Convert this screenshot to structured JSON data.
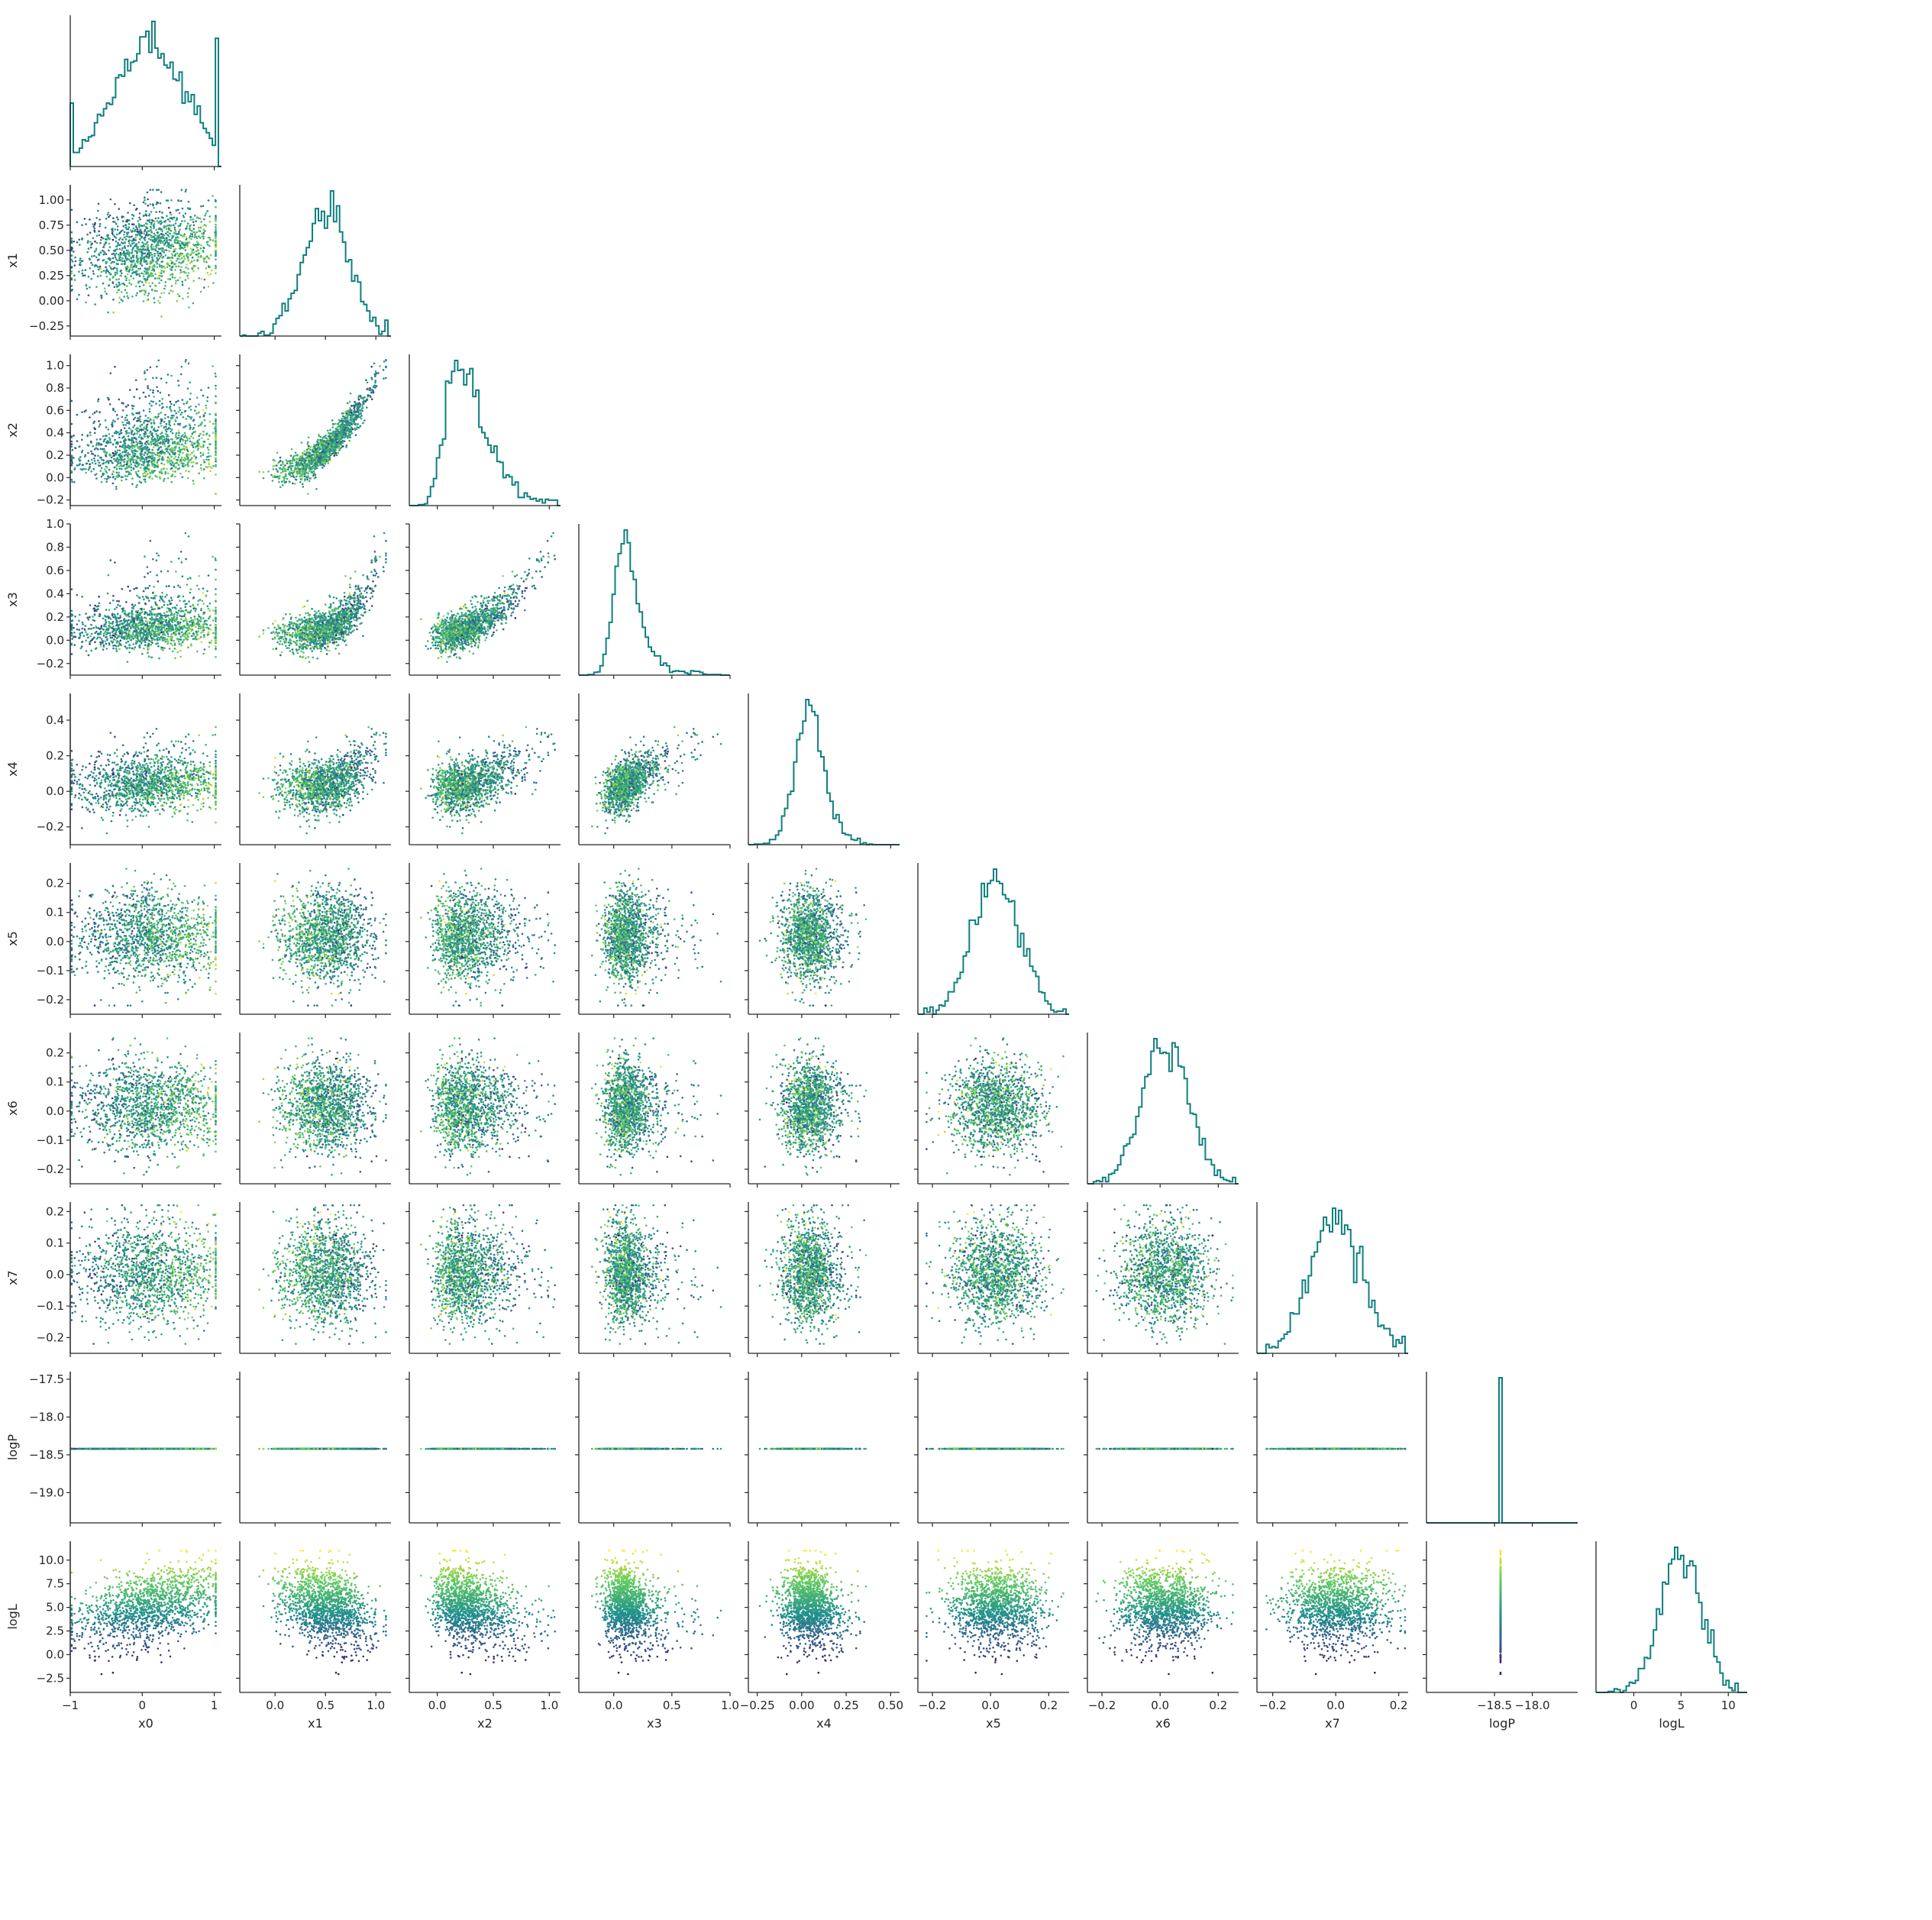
{
  "chart_data": {
    "type": "scatter",
    "layout": "corner-pair-plot",
    "variables": [
      "x0",
      "x1",
      "x2",
      "x3",
      "x4",
      "x5",
      "x6",
      "x7",
      "logP",
      "logL"
    ],
    "axis_labels": {
      "x": [
        "x0",
        "x1",
        "x2",
        "x3",
        "x4",
        "x5",
        "x6",
        "x7",
        "logP",
        "logL"
      ],
      "y": [
        "",
        "x1",
        "x2",
        "x3",
        "x4",
        "x5",
        "x6",
        "x7",
        "logP",
        "logL"
      ]
    },
    "ranges": {
      "x0": [
        -1.0,
        1.1
      ],
      "x1": [
        -0.35,
        1.15
      ],
      "x2": [
        -0.25,
        1.1
      ],
      "x3": [
        -0.3,
        1.0
      ],
      "x4": [
        -0.3,
        0.55
      ],
      "x5": [
        -0.25,
        0.27
      ],
      "x6": [
        -0.25,
        0.27
      ],
      "x7": [
        -0.25,
        0.23
      ],
      "logP": [
        -19.4,
        -17.4
      ],
      "logL": [
        -4.0,
        12.0
      ]
    },
    "ticks": {
      "x0": [
        -1,
        0,
        1
      ],
      "x1": [
        0.0,
        0.5,
        1.0
      ],
      "x2": [
        0.0,
        0.5,
        1.0
      ],
      "x3": [
        0.0,
        0.5,
        1.0
      ],
      "x4": [
        -0.25,
        0.0,
        0.25,
        0.5
      ],
      "x5": [
        -0.2,
        0.0,
        0.2
      ],
      "x6": [
        -0.2,
        0.0,
        0.2
      ],
      "x7": [
        -0.2,
        0.0,
        0.2
      ],
      "logP": [
        -18.5,
        -18.0
      ],
      "logL": [
        0,
        5,
        10
      ]
    },
    "tick_labels": {
      "x0": [
        "−1",
        "0",
        "1"
      ],
      "x1": [
        "0.0",
        "0.5",
        "1.0"
      ],
      "x2": [
        "0.0",
        "0.5",
        "1.0"
      ],
      "x3": [
        "0.0",
        "0.5",
        "1.0"
      ],
      "x4": [
        "−0.25",
        "0.00",
        "0.25",
        "0.50"
      ],
      "x5": [
        "−0.2",
        "0.0",
        "0.2"
      ],
      "x6": [
        "−0.2",
        "0.0",
        "0.2"
      ],
      "x7": [
        "−0.2",
        "0.0",
        "0.2"
      ],
      "logP": [
        "−18.5",
        "−18.0"
      ],
      "logL": [
        "0",
        "5",
        "10"
      ]
    },
    "y_ticks": {
      "x1": [
        -0.25,
        0.0,
        0.25,
        0.5,
        0.75,
        1.0
      ],
      "x2": [
        -0.2,
        0.0,
        0.2,
        0.4,
        0.6,
        0.8,
        1.0
      ],
      "x3": [
        -0.2,
        0.0,
        0.2,
        0.4,
        0.6,
        0.8,
        1.0
      ],
      "x4": [
        -0.2,
        0.0,
        0.2,
        0.4
      ],
      "x5": [
        -0.2,
        -0.1,
        0.0,
        0.1,
        0.2
      ],
      "x6": [
        -0.2,
        -0.1,
        0.0,
        0.1,
        0.2
      ],
      "x7": [
        -0.2,
        -0.1,
        0.0,
        0.1,
        0.2
      ],
      "logP": [
        -19.0,
        -18.5,
        -18.0,
        -17.5
      ],
      "logL": [
        -2.5,
        0.0,
        2.5,
        5.0,
        7.5,
        10.0
      ]
    },
    "y_tick_labels": {
      "x1": [
        "−0.25",
        "0.00",
        "0.25",
        "0.50",
        "0.75",
        "1.00"
      ],
      "x2": [
        "−0.2",
        "0.0",
        "0.2",
        "0.4",
        "0.6",
        "0.8",
        "1.0"
      ],
      "x3": [
        "−0.2",
        "0.0",
        "0.2",
        "0.4",
        "0.6",
        "0.8",
        "1.0"
      ],
      "x4": [
        "−0.2",
        "0.0",
        "0.2",
        "0.4"
      ],
      "x5": [
        "−0.2",
        "−0.1",
        "0.0",
        "0.1",
        "0.2"
      ],
      "x6": [
        "−0.2",
        "−0.1",
        "0.0",
        "0.1",
        "0.2"
      ],
      "x7": [
        "−0.2",
        "−0.1",
        "0.0",
        "0.1",
        "0.2"
      ],
      "logP": [
        "−19.0",
        "−18.5",
        "−18.0",
        "−17.5"
      ],
      "logL": [
        "−2.5",
        "0.0",
        "2.5",
        "5.0",
        "7.5",
        "10.0"
      ]
    },
    "constant_values": {
      "logP": -18.42
    },
    "color_by": "logL",
    "colormap": "viridis",
    "colormap_stops": [
      "#440154",
      "#3b528b",
      "#21918c",
      "#5ec962",
      "#fde725"
    ],
    "histogram_color": "#0f7f7f",
    "grid": false
  }
}
